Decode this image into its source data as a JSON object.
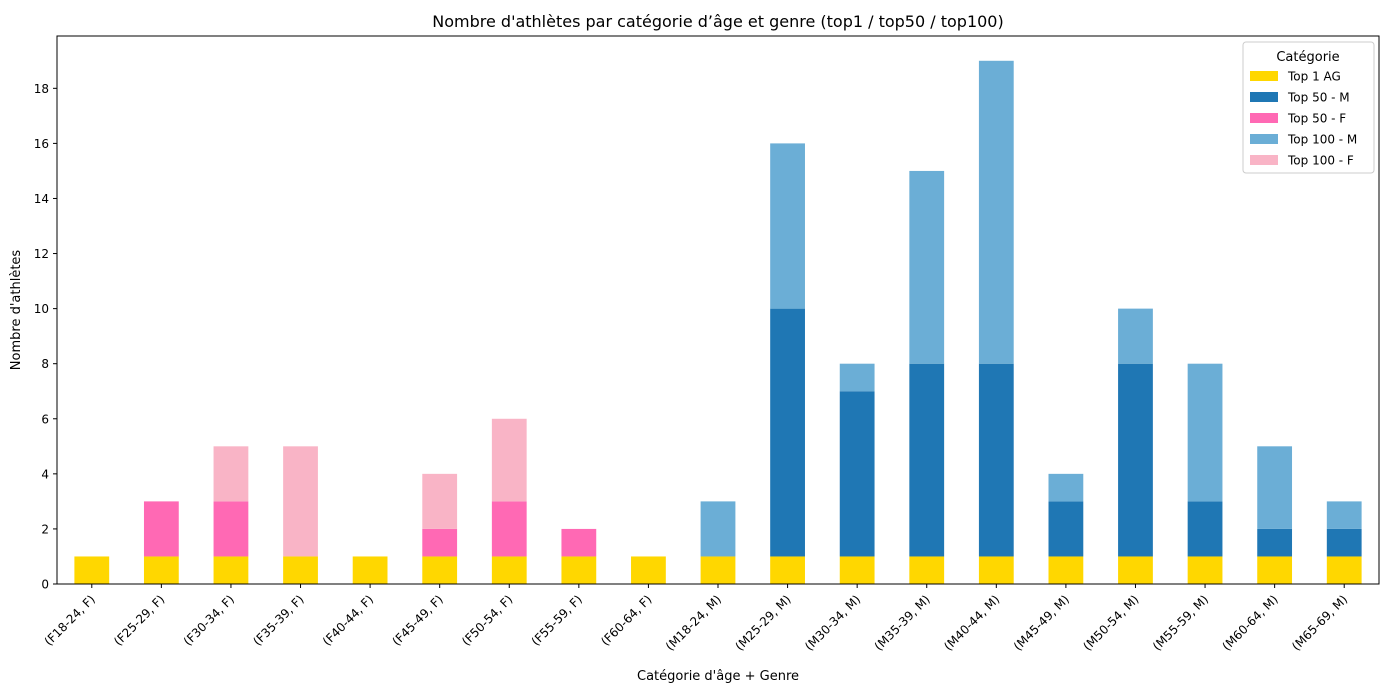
{
  "chart_data": {
    "type": "bar",
    "stacked": true,
    "title": "Nombre d'athlètes par catégorie d’âge et genre (top1 / top50 / top100)",
    "xlabel": "Catégorie d'âge + Genre",
    "ylabel": "Nombre d'athlètes",
    "ylim": [
      0,
      19.9
    ],
    "yticks": [
      0,
      2,
      4,
      6,
      8,
      10,
      12,
      14,
      16,
      18
    ],
    "legend": {
      "title": "Catégorie",
      "position": "top-right"
    },
    "categories": [
      "(F18-24, F)",
      "(F25-29, F)",
      "(F30-34, F)",
      "(F35-39, F)",
      "(F40-44, F)",
      "(F45-49, F)",
      "(F50-54, F)",
      "(F55-59, F)",
      "(F60-64, F)",
      "(M18-24, M)",
      "(M25-29, M)",
      "(M30-34, M)",
      "(M35-39, M)",
      "(M40-44, M)",
      "(M45-49, M)",
      "(M50-54, M)",
      "(M55-59, M)",
      "(M60-64, M)",
      "(M65-69, M)"
    ],
    "series": [
      {
        "name": "Top 1 AG",
        "color": "#FFD700",
        "values": [
          1,
          1,
          1,
          1,
          1,
          1,
          1,
          1,
          1,
          1,
          1,
          1,
          1,
          1,
          1,
          1,
          1,
          1,
          1
        ]
      },
      {
        "name": "Top 50 - M",
        "color": "#1F77B4",
        "values": [
          0,
          0,
          0,
          0,
          0,
          0,
          0,
          0,
          0,
          0,
          9,
          6,
          7,
          7,
          2,
          7,
          2,
          1,
          1
        ]
      },
      {
        "name": "Top 50 - F",
        "color": "#FF69B4",
        "values": [
          0,
          2,
          2,
          0,
          0,
          1,
          2,
          1,
          0,
          0,
          0,
          0,
          0,
          0,
          0,
          0,
          0,
          0,
          0
        ]
      },
      {
        "name": "Top 100 - M",
        "color": "#6BAED6",
        "values": [
          0,
          0,
          0,
          0,
          0,
          0,
          0,
          0,
          0,
          2,
          6,
          1,
          7,
          11,
          1,
          2,
          5,
          3,
          1
        ]
      },
      {
        "name": "Top 100 - F",
        "color": "#F9B4C6",
        "values": [
          0,
          0,
          2,
          4,
          0,
          2,
          3,
          0,
          0,
          0,
          0,
          0,
          0,
          0,
          0,
          0,
          0,
          0,
          0
        ]
      }
    ]
  }
}
